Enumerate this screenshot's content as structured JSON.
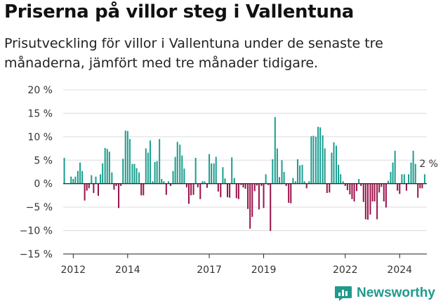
{
  "title": "Priserna på villor steg i Vallentuna",
  "subtitle": "Prisutveckling för villor i Vallentuna under de senaste tre månaderna, jämfört med tre månader tidigare.",
  "brand": "Newsworthy",
  "colors": {
    "positive": "#1a9e8f",
    "negative": "#99124a",
    "logo": "#1f9a8b"
  },
  "chart_data": {
    "type": "bar",
    "ylim": [
      -15,
      20
    ],
    "y_ticks": [
      20,
      15,
      10,
      5,
      0,
      -5,
      -10,
      -15
    ],
    "y_tick_labels": [
      "20 %",
      "15 %",
      "10 %",
      "5 %",
      "0 %",
      "−5 %",
      "−10 %",
      "−15 %"
    ],
    "x_ticks": [
      2012,
      2014,
      2017,
      2019,
      2022,
      2024
    ],
    "x_tick_labels": [
      "2012",
      "2014",
      "2017",
      "2019",
      "2022",
      "2024"
    ],
    "x_range": [
      2011.63,
      2025.0
    ],
    "grid": true,
    "annotation": {
      "text": "2 %",
      "x": 2024.75,
      "y": 2.2
    },
    "series": [
      {
        "values": [
          {
            "x": 2011.67,
            "y": 5.5
          },
          {
            "x": 2011.92,
            "y": 1.5
          },
          {
            "x": 2012.0,
            "y": 1.0
          },
          {
            "x": 2012.08,
            "y": 1.5
          },
          {
            "x": 2012.17,
            "y": 2.7
          },
          {
            "x": 2012.25,
            "y": 4.5
          },
          {
            "x": 2012.33,
            "y": 2.7
          },
          {
            "x": 2012.42,
            "y": -3.6
          },
          {
            "x": 2012.5,
            "y": -1.5
          },
          {
            "x": 2012.58,
            "y": -1.0
          },
          {
            "x": 2012.67,
            "y": 1.8
          },
          {
            "x": 2012.75,
            "y": -2.0
          },
          {
            "x": 2012.83,
            "y": 1.5
          },
          {
            "x": 2012.92,
            "y": -2.6
          },
          {
            "x": 2013.0,
            "y": 2.0
          },
          {
            "x": 2013.08,
            "y": 4.3
          },
          {
            "x": 2013.17,
            "y": 7.6
          },
          {
            "x": 2013.25,
            "y": 7.4
          },
          {
            "x": 2013.33,
            "y": 6.8
          },
          {
            "x": 2013.42,
            "y": 2.4
          },
          {
            "x": 2013.5,
            "y": -1.3
          },
          {
            "x": 2013.58,
            "y": -0.5
          },
          {
            "x": 2013.67,
            "y": -5.2
          },
          {
            "x": 2013.75,
            "y": -0.5
          },
          {
            "x": 2013.83,
            "y": 5.3
          },
          {
            "x": 2013.92,
            "y": 11.3
          },
          {
            "x": 2014.0,
            "y": 11.2
          },
          {
            "x": 2014.08,
            "y": 9.5
          },
          {
            "x": 2014.17,
            "y": 4.2
          },
          {
            "x": 2014.25,
            "y": 4.2
          },
          {
            "x": 2014.33,
            "y": 3.3
          },
          {
            "x": 2014.42,
            "y": 2.4
          },
          {
            "x": 2014.5,
            "y": -2.5
          },
          {
            "x": 2014.58,
            "y": -2.5
          },
          {
            "x": 2014.67,
            "y": 7.5
          },
          {
            "x": 2014.75,
            "y": 6.6
          },
          {
            "x": 2014.83,
            "y": 9.2
          },
          {
            "x": 2014.92,
            "y": 0.5
          },
          {
            "x": 2015.0,
            "y": 4.6
          },
          {
            "x": 2015.08,
            "y": 4.8
          },
          {
            "x": 2015.17,
            "y": 9.5
          },
          {
            "x": 2015.25,
            "y": 1.0
          },
          {
            "x": 2015.33,
            "y": 0.5
          },
          {
            "x": 2015.42,
            "y": -2.4
          },
          {
            "x": 2015.5,
            "y": 0.5
          },
          {
            "x": 2015.58,
            "y": -0.5
          },
          {
            "x": 2015.67,
            "y": 2.7
          },
          {
            "x": 2015.75,
            "y": 5.7
          },
          {
            "x": 2015.83,
            "y": 8.9
          },
          {
            "x": 2015.92,
            "y": 8.3
          },
          {
            "x": 2016.0,
            "y": 6.0
          },
          {
            "x": 2016.08,
            "y": 3.2
          },
          {
            "x": 2016.17,
            "y": -0.8
          },
          {
            "x": 2016.25,
            "y": -4.3
          },
          {
            "x": 2016.33,
            "y": -2.5
          },
          {
            "x": 2016.42,
            "y": -2.4
          },
          {
            "x": 2016.5,
            "y": 5.5
          },
          {
            "x": 2016.58,
            "y": -0.8
          },
          {
            "x": 2016.67,
            "y": -3.3
          },
          {
            "x": 2016.75,
            "y": 0.5
          },
          {
            "x": 2016.83,
            "y": 0.5
          },
          {
            "x": 2016.92,
            "y": -0.9
          },
          {
            "x": 2017.0,
            "y": 6.3
          },
          {
            "x": 2017.08,
            "y": 4.3
          },
          {
            "x": 2017.17,
            "y": 4.3
          },
          {
            "x": 2017.25,
            "y": 5.7
          },
          {
            "x": 2017.33,
            "y": -1.7
          },
          {
            "x": 2017.42,
            "y": -2.9
          },
          {
            "x": 2017.5,
            "y": 3.5
          },
          {
            "x": 2017.58,
            "y": 1.1
          },
          {
            "x": 2017.67,
            "y": -2.9
          },
          {
            "x": 2017.75,
            "y": -3.0
          },
          {
            "x": 2017.83,
            "y": 5.6
          },
          {
            "x": 2017.92,
            "y": 1.2
          },
          {
            "x": 2018.0,
            "y": -3.1
          },
          {
            "x": 2018.08,
            "y": -3.3
          },
          {
            "x": 2018.17,
            "y": -0.3
          },
          {
            "x": 2018.25,
            "y": -0.8
          },
          {
            "x": 2018.33,
            "y": -1.1
          },
          {
            "x": 2018.42,
            "y": -5.4
          },
          {
            "x": 2018.5,
            "y": -9.6
          },
          {
            "x": 2018.58,
            "y": -7.1
          },
          {
            "x": 2018.67,
            "y": -1.6
          },
          {
            "x": 2018.75,
            "y": -0.4
          },
          {
            "x": 2018.83,
            "y": -5.5
          },
          {
            "x": 2018.92,
            "y": -0.5
          },
          {
            "x": 2019.0,
            "y": -5.2
          },
          {
            "x": 2019.08,
            "y": 2.0
          },
          {
            "x": 2019.17,
            "y": -0.3
          },
          {
            "x": 2019.25,
            "y": -10.1
          },
          {
            "x": 2019.33,
            "y": 5.2
          },
          {
            "x": 2019.42,
            "y": 14.2
          },
          {
            "x": 2019.5,
            "y": 7.5
          },
          {
            "x": 2019.58,
            "y": 1.4
          },
          {
            "x": 2019.67,
            "y": 5.0
          },
          {
            "x": 2019.75,
            "y": 2.5
          },
          {
            "x": 2019.83,
            "y": -0.5
          },
          {
            "x": 2019.92,
            "y": -4.1
          },
          {
            "x": 2020.0,
            "y": -4.2
          },
          {
            "x": 2020.08,
            "y": 1.2
          },
          {
            "x": 2020.17,
            "y": 0.5
          },
          {
            "x": 2020.25,
            "y": 5.2
          },
          {
            "x": 2020.33,
            "y": 3.9
          },
          {
            "x": 2020.42,
            "y": 4.0
          },
          {
            "x": 2020.5,
            "y": 0.5
          },
          {
            "x": 2020.58,
            "y": -1.0
          },
          {
            "x": 2020.67,
            "y": 0.5
          },
          {
            "x": 2020.75,
            "y": 10.1
          },
          {
            "x": 2020.83,
            "y": 10.2
          },
          {
            "x": 2020.92,
            "y": 10.0
          },
          {
            "x": 2021.0,
            "y": 12.1
          },
          {
            "x": 2021.08,
            "y": 12.0
          },
          {
            "x": 2021.17,
            "y": 10.3
          },
          {
            "x": 2021.25,
            "y": 7.5
          },
          {
            "x": 2021.33,
            "y": -2.0
          },
          {
            "x": 2021.42,
            "y": -1.9
          },
          {
            "x": 2021.5,
            "y": 6.6
          },
          {
            "x": 2021.58,
            "y": 8.8
          },
          {
            "x": 2021.67,
            "y": 8.1
          },
          {
            "x": 2021.75,
            "y": 4.0
          },
          {
            "x": 2021.83,
            "y": 2.0
          },
          {
            "x": 2021.92,
            "y": 0.5
          },
          {
            "x": 2022.0,
            "y": -0.5
          },
          {
            "x": 2022.08,
            "y": -1.4
          },
          {
            "x": 2022.17,
            "y": -2.3
          },
          {
            "x": 2022.25,
            "y": -3.3
          },
          {
            "x": 2022.33,
            "y": -3.8
          },
          {
            "x": 2022.42,
            "y": -1.6
          },
          {
            "x": 2022.5,
            "y": 1.0
          },
          {
            "x": 2022.58,
            "y": -0.5
          },
          {
            "x": 2022.67,
            "y": -3.9
          },
          {
            "x": 2022.75,
            "y": -7.6
          },
          {
            "x": 2022.83,
            "y": -7.7
          },
          {
            "x": 2022.92,
            "y": -6.6
          },
          {
            "x": 2023.0,
            "y": -3.8
          },
          {
            "x": 2023.08,
            "y": -3.8
          },
          {
            "x": 2023.17,
            "y": -7.6
          },
          {
            "x": 2023.25,
            "y": -1.9
          },
          {
            "x": 2023.33,
            "y": -0.7
          },
          {
            "x": 2023.42,
            "y": -3.8
          },
          {
            "x": 2023.5,
            "y": -5.1
          },
          {
            "x": 2023.58,
            "y": 0.6
          },
          {
            "x": 2023.67,
            "y": 2.5
          },
          {
            "x": 2023.75,
            "y": 4.5
          },
          {
            "x": 2023.83,
            "y": 7.0
          },
          {
            "x": 2023.92,
            "y": -1.5
          },
          {
            "x": 2024.0,
            "y": -2.2
          },
          {
            "x": 2024.08,
            "y": 2.0
          },
          {
            "x": 2024.17,
            "y": 2.0
          },
          {
            "x": 2024.25,
            "y": -1.5
          },
          {
            "x": 2024.33,
            "y": 2.0
          },
          {
            "x": 2024.42,
            "y": 4.5
          },
          {
            "x": 2024.5,
            "y": 7.0
          },
          {
            "x": 2024.58,
            "y": 4.2
          },
          {
            "x": 2024.67,
            "y": -3.0
          },
          {
            "x": 2024.75,
            "y": -1.0
          },
          {
            "x": 2024.83,
            "y": -1.0
          },
          {
            "x": 2024.92,
            "y": 2.0
          }
        ]
      }
    ]
  }
}
